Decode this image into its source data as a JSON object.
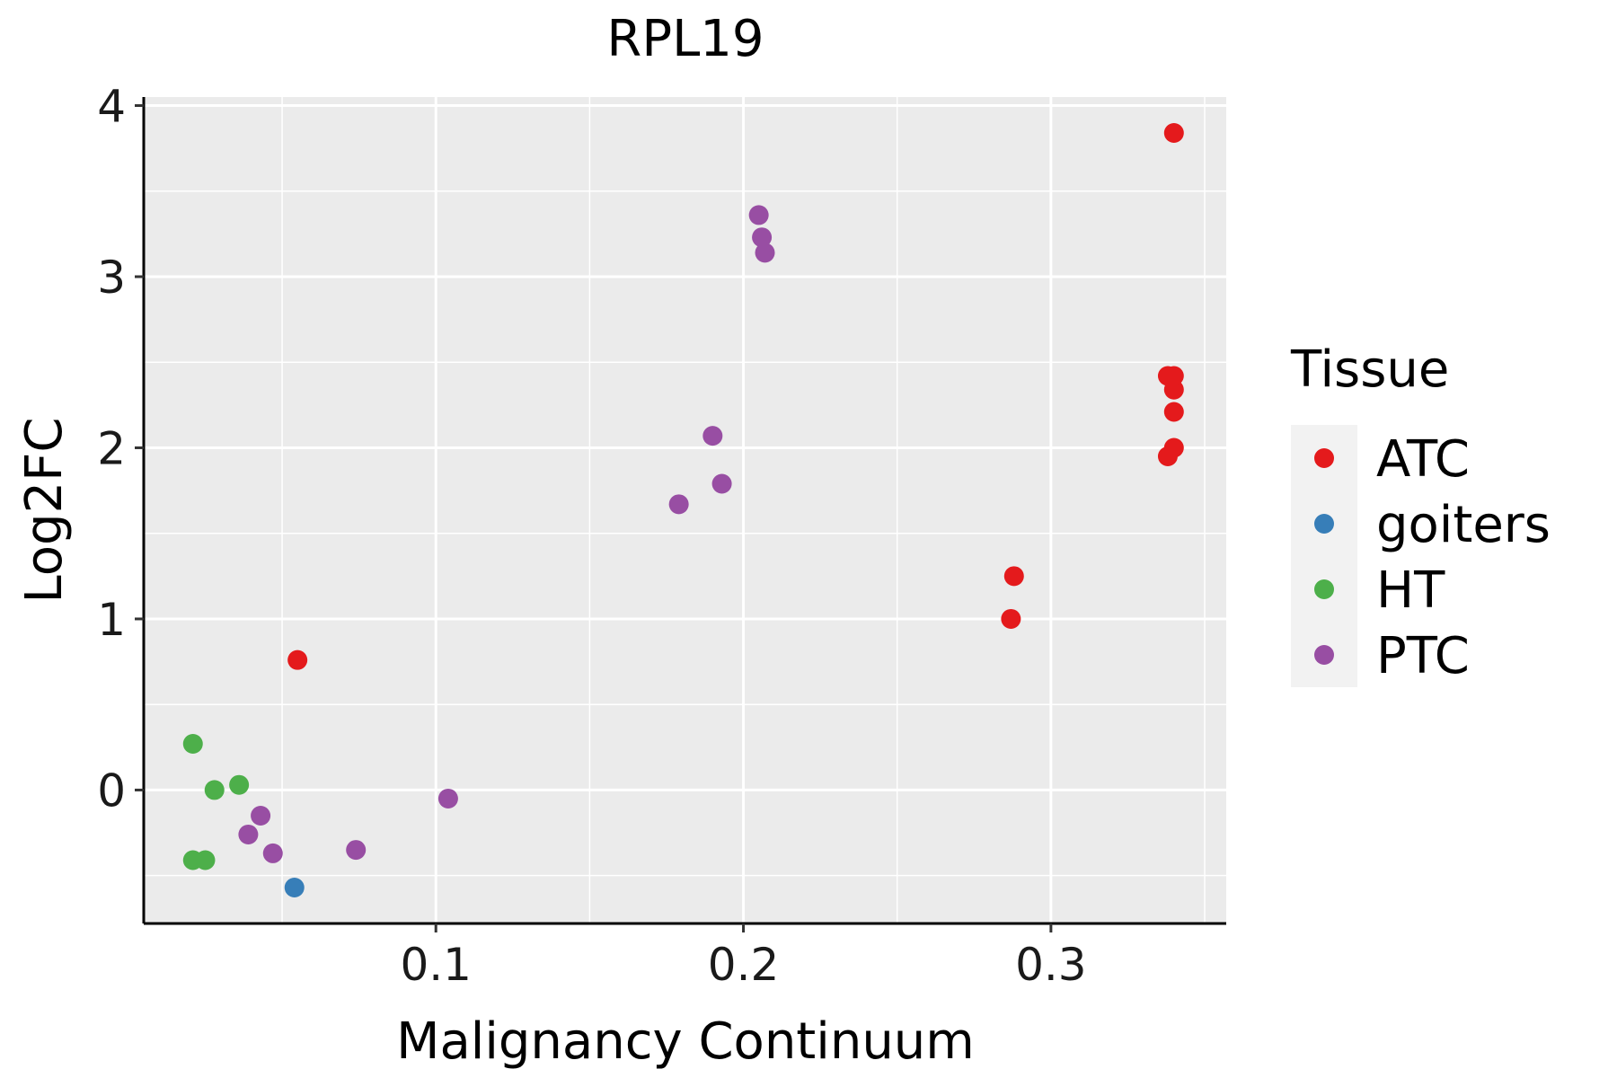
{
  "chart_data": {
    "type": "scatter",
    "title": "RPL19",
    "xlabel": "Malignancy Continuum",
    "ylabel": "Log2FC",
    "xlim": [
      0.005,
      0.357
    ],
    "ylim": [
      -0.78,
      4.05
    ],
    "x_ticks": [
      0.1,
      0.2,
      0.3
    ],
    "x_tick_labels": [
      "0.1",
      "0.2",
      "0.3"
    ],
    "y_ticks": [
      0,
      1,
      2,
      3,
      4
    ],
    "y_tick_labels": [
      "0",
      "1",
      "2",
      "3",
      "4"
    ],
    "grid": true,
    "legend": {
      "title": "Tissue",
      "placement": "right"
    },
    "series": [
      {
        "name": "ATC",
        "color": "#E41A1C",
        "points": [
          [
            0.055,
            0.76
          ],
          [
            0.287,
            1.0
          ],
          [
            0.288,
            1.25
          ],
          [
            0.338,
            1.95
          ],
          [
            0.34,
            2.0
          ],
          [
            0.34,
            2.21
          ],
          [
            0.34,
            2.34
          ],
          [
            0.338,
            2.42
          ],
          [
            0.34,
            2.42
          ],
          [
            0.34,
            3.84
          ]
        ]
      },
      {
        "name": "goiters",
        "color": "#377EB8",
        "points": [
          [
            0.054,
            -0.57
          ]
        ]
      },
      {
        "name": "HT",
        "color": "#4DAF4A",
        "points": [
          [
            0.021,
            0.27
          ],
          [
            0.028,
            0.0
          ],
          [
            0.036,
            0.03
          ],
          [
            0.021,
            -0.41
          ],
          [
            0.025,
            -0.41
          ]
        ]
      },
      {
        "name": "PTC",
        "color": "#984EA3",
        "points": [
          [
            0.043,
            -0.15
          ],
          [
            0.039,
            -0.26
          ],
          [
            0.047,
            -0.37
          ],
          [
            0.074,
            -0.35
          ],
          [
            0.104,
            -0.05
          ],
          [
            0.179,
            1.67
          ],
          [
            0.19,
            2.07
          ],
          [
            0.193,
            1.79
          ],
          [
            0.205,
            3.36
          ],
          [
            0.206,
            3.23
          ],
          [
            0.207,
            3.14
          ]
        ]
      }
    ]
  }
}
